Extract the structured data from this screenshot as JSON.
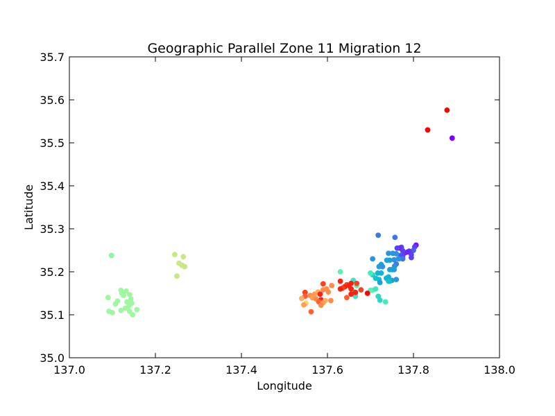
{
  "chart_data": {
    "type": "scatter",
    "title": "Geographic Parallel Zone 11 Migration 12",
    "xlabel": "Longitude",
    "ylabel": "Latitude",
    "xlim": [
      137.0,
      138.0
    ],
    "ylim": [
      35.0,
      35.7
    ],
    "xticks": [
      "137.0",
      "137.2",
      "137.4",
      "137.6",
      "137.8",
      "138.0"
    ],
    "yticks": [
      "35.0",
      "35.1",
      "35.2",
      "35.3",
      "35.4",
      "35.5",
      "35.6",
      "35.7"
    ],
    "grid": false,
    "colormap": "rainbow",
    "points": [
      {
        "x": 137.89,
        "y": 35.511,
        "color": "#8000ff"
      },
      {
        "x": 137.806,
        "y": 35.262,
        "color": "#7a0af9"
      },
      {
        "x": 137.803,
        "y": 35.258,
        "color": "#5d3ef6"
      },
      {
        "x": 137.8,
        "y": 35.25,
        "color": "#4c5cf0"
      },
      {
        "x": 137.795,
        "y": 35.24,
        "color": "#5a46f5"
      },
      {
        "x": 137.79,
        "y": 35.248,
        "color": "#5d3ef6"
      },
      {
        "x": 137.786,
        "y": 35.246,
        "color": "#6a28f8"
      },
      {
        "x": 137.78,
        "y": 35.244,
        "color": "#6a28f8"
      },
      {
        "x": 137.775,
        "y": 35.249,
        "color": "#5d3ef6"
      },
      {
        "x": 137.772,
        "y": 35.257,
        "color": "#5a46f5"
      },
      {
        "x": 137.767,
        "y": 35.255,
        "color": "#6a28f8"
      },
      {
        "x": 137.762,
        "y": 35.255,
        "color": "#5d3ef6"
      },
      {
        "x": 137.795,
        "y": 35.233,
        "color": "#5d3ef6"
      },
      {
        "x": 137.77,
        "y": 35.238,
        "color": "#4c5cf0"
      },
      {
        "x": 137.768,
        "y": 35.231,
        "color": "#4664ed"
      },
      {
        "x": 137.775,
        "y": 35.236,
        "color": "#5a46f5"
      },
      {
        "x": 137.757,
        "y": 35.28,
        "color": "#3f76e8"
      },
      {
        "x": 137.718,
        "y": 35.285,
        "color": "#3f76e8"
      },
      {
        "x": 137.76,
        "y": 35.242,
        "color": "#2b94e0"
      },
      {
        "x": 137.752,
        "y": 35.243,
        "color": "#2b94e0"
      },
      {
        "x": 137.742,
        "y": 35.243,
        "color": "#2b94e0"
      },
      {
        "x": 137.775,
        "y": 35.23,
        "color": "#3f76e8"
      },
      {
        "x": 137.765,
        "y": 35.23,
        "color": "#2b94e0"
      },
      {
        "x": 137.755,
        "y": 35.228,
        "color": "#2b94e0"
      },
      {
        "x": 137.745,
        "y": 35.227,
        "color": "#1ca2da"
      },
      {
        "x": 137.738,
        "y": 35.227,
        "color": "#1ca2da"
      },
      {
        "x": 137.705,
        "y": 35.23,
        "color": "#2b94e0"
      },
      {
        "x": 137.76,
        "y": 35.218,
        "color": "#3f76e8"
      },
      {
        "x": 137.756,
        "y": 35.213,
        "color": "#2b94e0"
      },
      {
        "x": 137.725,
        "y": 35.217,
        "color": "#1ca2da"
      },
      {
        "x": 137.72,
        "y": 35.212,
        "color": "#1ca2da"
      },
      {
        "x": 137.728,
        "y": 35.212,
        "color": "#2b94e0"
      },
      {
        "x": 137.75,
        "y": 35.205,
        "color": "#1ca2da"
      },
      {
        "x": 137.745,
        "y": 35.205,
        "color": "#1ca2da"
      },
      {
        "x": 137.755,
        "y": 35.205,
        "color": "#1ca2da"
      },
      {
        "x": 137.717,
        "y": 35.197,
        "color": "#12b3d4"
      },
      {
        "x": 137.725,
        "y": 35.197,
        "color": "#12b3d4"
      },
      {
        "x": 137.705,
        "y": 35.193,
        "color": "#2cd5c8"
      },
      {
        "x": 137.7,
        "y": 35.197,
        "color": "#45ecbb"
      },
      {
        "x": 137.742,
        "y": 35.188,
        "color": "#12b3d4"
      },
      {
        "x": 137.737,
        "y": 35.185,
        "color": "#12b3d4"
      },
      {
        "x": 137.712,
        "y": 35.185,
        "color": "#0ec2ce"
      },
      {
        "x": 137.72,
        "y": 35.182,
        "color": "#0ec2ce"
      },
      {
        "x": 137.76,
        "y": 35.182,
        "color": "#2b94e0"
      },
      {
        "x": 137.75,
        "y": 35.18,
        "color": "#1ca2da"
      },
      {
        "x": 137.745,
        "y": 35.178,
        "color": "#12b3d4"
      },
      {
        "x": 137.722,
        "y": 35.175,
        "color": "#1ca2da"
      },
      {
        "x": 137.742,
        "y": 35.178,
        "color": "#0ec2ce"
      },
      {
        "x": 137.705,
        "y": 35.157,
        "color": "#54f4b2"
      },
      {
        "x": 137.7,
        "y": 35.157,
        "color": "#54f4b2"
      },
      {
        "x": 137.712,
        "y": 35.16,
        "color": "#3fe4c0"
      },
      {
        "x": 137.718,
        "y": 35.143,
        "color": "#2cd5c8"
      },
      {
        "x": 137.722,
        "y": 35.134,
        "color": "#2cd5c8"
      },
      {
        "x": 137.735,
        "y": 35.13,
        "color": "#45ecbb"
      },
      {
        "x": 137.63,
        "y": 35.2,
        "color": "#54f4b2"
      },
      {
        "x": 137.66,
        "y": 35.18,
        "color": "#3fe4c0"
      },
      {
        "x": 137.668,
        "y": 35.168,
        "color": "#54f4b2"
      },
      {
        "x": 137.66,
        "y": 35.155,
        "color": "#54f4b2"
      },
      {
        "x": 137.665,
        "y": 35.148,
        "color": "#3fe4c0"
      },
      {
        "x": 137.665,
        "y": 35.143,
        "color": "#3fe4c0"
      },
      {
        "x": 137.098,
        "y": 35.238,
        "color": "#86fa9c"
      },
      {
        "x": 137.12,
        "y": 35.157,
        "color": "#9ff8a0"
      },
      {
        "x": 137.132,
        "y": 35.155,
        "color": "#9ff8a0"
      },
      {
        "x": 137.122,
        "y": 35.15,
        "color": "#9ff8a0"
      },
      {
        "x": 137.14,
        "y": 35.147,
        "color": "#9ff8a0"
      },
      {
        "x": 137.126,
        "y": 35.145,
        "color": "#9ff8a0"
      },
      {
        "x": 137.09,
        "y": 35.14,
        "color": "#9ff8a0"
      },
      {
        "x": 137.143,
        "y": 35.137,
        "color": "#9ff8a0"
      },
      {
        "x": 137.112,
        "y": 35.132,
        "color": "#9ff8a0"
      },
      {
        "x": 137.134,
        "y": 35.13,
        "color": "#9ff8a0"
      },
      {
        "x": 137.145,
        "y": 35.127,
        "color": "#9ff8a0"
      },
      {
        "x": 137.107,
        "y": 35.125,
        "color": "#9ff8a0"
      },
      {
        "x": 137.138,
        "y": 35.12,
        "color": "#9ff8a0"
      },
      {
        "x": 137.13,
        "y": 35.115,
        "color": "#9ff8a0"
      },
      {
        "x": 137.157,
        "y": 35.112,
        "color": "#9ff8a0"
      },
      {
        "x": 137.12,
        "y": 35.11,
        "color": "#9ff8a0"
      },
      {
        "x": 137.092,
        "y": 35.108,
        "color": "#9ff8a0"
      },
      {
        "x": 137.14,
        "y": 35.108,
        "color": "#9ff8a0"
      },
      {
        "x": 137.1,
        "y": 35.105,
        "color": "#9ff8a0"
      },
      {
        "x": 137.147,
        "y": 35.1,
        "color": "#9ff8a0"
      },
      {
        "x": 137.245,
        "y": 35.24,
        "color": "#c8e882"
      },
      {
        "x": 137.265,
        "y": 35.235,
        "color": "#c8e882"
      },
      {
        "x": 137.255,
        "y": 35.22,
        "color": "#c8e882"
      },
      {
        "x": 137.262,
        "y": 35.215,
        "color": "#c8e882"
      },
      {
        "x": 137.268,
        "y": 35.212,
        "color": "#c8e882"
      },
      {
        "x": 137.25,
        "y": 35.19,
        "color": "#c8e882"
      },
      {
        "x": 137.61,
        "y": 35.168,
        "color": "#ff8c4a"
      },
      {
        "x": 137.59,
        "y": 35.172,
        "color": "#ff4020"
      },
      {
        "x": 137.598,
        "y": 35.16,
        "color": "#ff8c4a"
      },
      {
        "x": 137.59,
        "y": 35.158,
        "color": "#ff8c4a"
      },
      {
        "x": 137.578,
        "y": 35.153,
        "color": "#ffb060"
      },
      {
        "x": 137.602,
        "y": 35.153,
        "color": "#ff8c4a"
      },
      {
        "x": 137.548,
        "y": 35.152,
        "color": "#ff4020"
      },
      {
        "x": 137.57,
        "y": 35.148,
        "color": "#ffa050"
      },
      {
        "x": 137.583,
        "y": 35.148,
        "color": "#ff2010"
      },
      {
        "x": 137.56,
        "y": 35.145,
        "color": "#ff8c4a"
      },
      {
        "x": 137.548,
        "y": 35.143,
        "color": "#ff6030"
      },
      {
        "x": 137.565,
        "y": 35.14,
        "color": "#ffa050"
      },
      {
        "x": 137.54,
        "y": 35.138,
        "color": "#ffb060"
      },
      {
        "x": 137.573,
        "y": 35.137,
        "color": "#ff8c4a"
      },
      {
        "x": 137.585,
        "y": 35.135,
        "color": "#ff2010"
      },
      {
        "x": 137.595,
        "y": 35.133,
        "color": "#ffb060"
      },
      {
        "x": 137.608,
        "y": 35.133,
        "color": "#ff8c4a"
      },
      {
        "x": 137.58,
        "y": 35.13,
        "color": "#ff6030"
      },
      {
        "x": 137.59,
        "y": 35.128,
        "color": "#ffa050"
      },
      {
        "x": 137.55,
        "y": 35.127,
        "color": "#ffd070"
      },
      {
        "x": 137.545,
        "y": 35.123,
        "color": "#ffa050"
      },
      {
        "x": 137.585,
        "y": 35.122,
        "color": "#ff8c4a"
      },
      {
        "x": 137.562,
        "y": 35.107,
        "color": "#ff6030"
      },
      {
        "x": 137.63,
        "y": 35.178,
        "color": "#ff2010"
      },
      {
        "x": 137.655,
        "y": 35.173,
        "color": "#ff2010"
      },
      {
        "x": 137.668,
        "y": 35.173,
        "color": "#ff4020"
      },
      {
        "x": 137.645,
        "y": 35.17,
        "color": "#ff4020"
      },
      {
        "x": 137.65,
        "y": 35.168,
        "color": "#ff2010"
      },
      {
        "x": 137.64,
        "y": 35.165,
        "color": "#ff2010"
      },
      {
        "x": 137.635,
        "y": 35.162,
        "color": "#ff4020"
      },
      {
        "x": 137.63,
        "y": 35.16,
        "color": "#ff2010"
      },
      {
        "x": 137.655,
        "y": 35.16,
        "color": "#ff2010"
      },
      {
        "x": 137.678,
        "y": 35.158,
        "color": "#ff4020"
      },
      {
        "x": 137.655,
        "y": 35.148,
        "color": "#ff2010"
      },
      {
        "x": 137.665,
        "y": 35.152,
        "color": "#ff2010"
      },
      {
        "x": 137.693,
        "y": 35.15,
        "color": "#ff0000"
      },
      {
        "x": 137.645,
        "y": 35.14,
        "color": "#ff6030"
      },
      {
        "x": 137.833,
        "y": 35.53,
        "color": "#ff0000"
      },
      {
        "x": 137.878,
        "y": 35.576,
        "color": "#ff0000"
      }
    ]
  }
}
